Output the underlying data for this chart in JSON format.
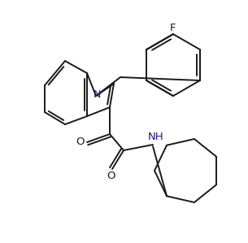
{
  "background_color": "#ffffff",
  "line_color": "#1a1a1a",
  "text_color": "#1a1a1a",
  "nitrogen_color": "#1a1a8a",
  "label_N": "N",
  "label_NH": "NH",
  "label_O1": "O",
  "label_O2": "O",
  "label_F": "F",
  "figsize": [
    3.05,
    2.99
  ],
  "dpi": 100
}
